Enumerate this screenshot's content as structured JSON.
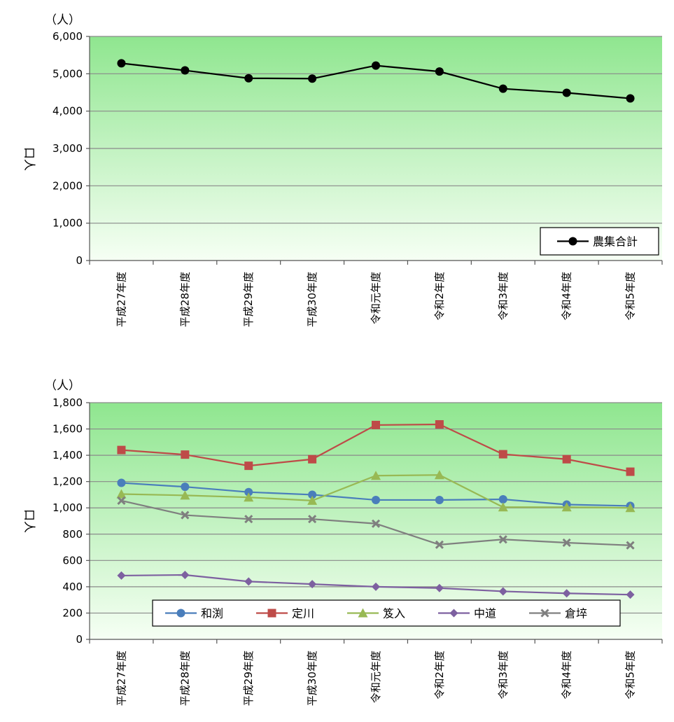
{
  "chart_data": [
    {
      "type": "line",
      "unit_label": "（人）",
      "ylabel": "口人",
      "ylim": [
        0,
        6000
      ],
      "yticks": [
        "0",
        "1,000",
        "2,000",
        "3,000",
        "4,000",
        "5,000",
        "6,000"
      ],
      "ytick_values": [
        0,
        1000,
        2000,
        3000,
        4000,
        5000,
        6000
      ],
      "grid": true,
      "legend_position": "bottom-right",
      "categories": [
        "平成27年度",
        "平成28年度",
        "平成29年度",
        "平成30年度",
        "令和元年度",
        "令和2年度",
        "令和3年度",
        "令和4年度",
        "令和5年度"
      ],
      "series": [
        {
          "name": "農集合計",
          "color": "#000000",
          "marker": "circle",
          "values": [
            5280,
            5090,
            4880,
            4870,
            5220,
            5060,
            4600,
            4490,
            4340
          ]
        }
      ]
    },
    {
      "type": "line",
      "unit_label": "（人）",
      "ylabel": "口人",
      "ylim": [
        0,
        1800
      ],
      "yticks": [
        "0",
        "200",
        "400",
        "600",
        "800",
        "1,000",
        "1,200",
        "1,400",
        "1,600",
        "1,800"
      ],
      "ytick_values": [
        0,
        200,
        400,
        600,
        800,
        1000,
        1200,
        1400,
        1600,
        1800
      ],
      "grid": true,
      "legend_position": "bottom",
      "categories": [
        "平成27年度",
        "平成28年度",
        "平成29年度",
        "平成30年度",
        "令和元年度",
        "令和2年度",
        "令和3年度",
        "令和4年度",
        "令和5年度"
      ],
      "series": [
        {
          "name": "和渕",
          "color": "#4a7ebb",
          "marker": "circle",
          "values": [
            1190,
            1160,
            1120,
            1100,
            1060,
            1060,
            1065,
            1025,
            1015
          ]
        },
        {
          "name": "定川",
          "color": "#be4b48",
          "marker": "square",
          "values": [
            1440,
            1405,
            1320,
            1370,
            1630,
            1635,
            1408,
            1370,
            1275
          ]
        },
        {
          "name": "笈入",
          "color": "#98b954",
          "marker": "triangle",
          "values": [
            1105,
            1095,
            1080,
            1055,
            1245,
            1250,
            1005,
            1005,
            1000
          ]
        },
        {
          "name": "中道",
          "color": "#7d60a0",
          "marker": "diamond",
          "values": [
            485,
            490,
            440,
            420,
            400,
            390,
            365,
            350,
            340
          ]
        },
        {
          "name": "倉埣",
          "color": "#7f7f7f",
          "marker": "x",
          "values": [
            1055,
            945,
            915,
            915,
            880,
            720,
            760,
            735,
            715
          ]
        }
      ]
    }
  ]
}
